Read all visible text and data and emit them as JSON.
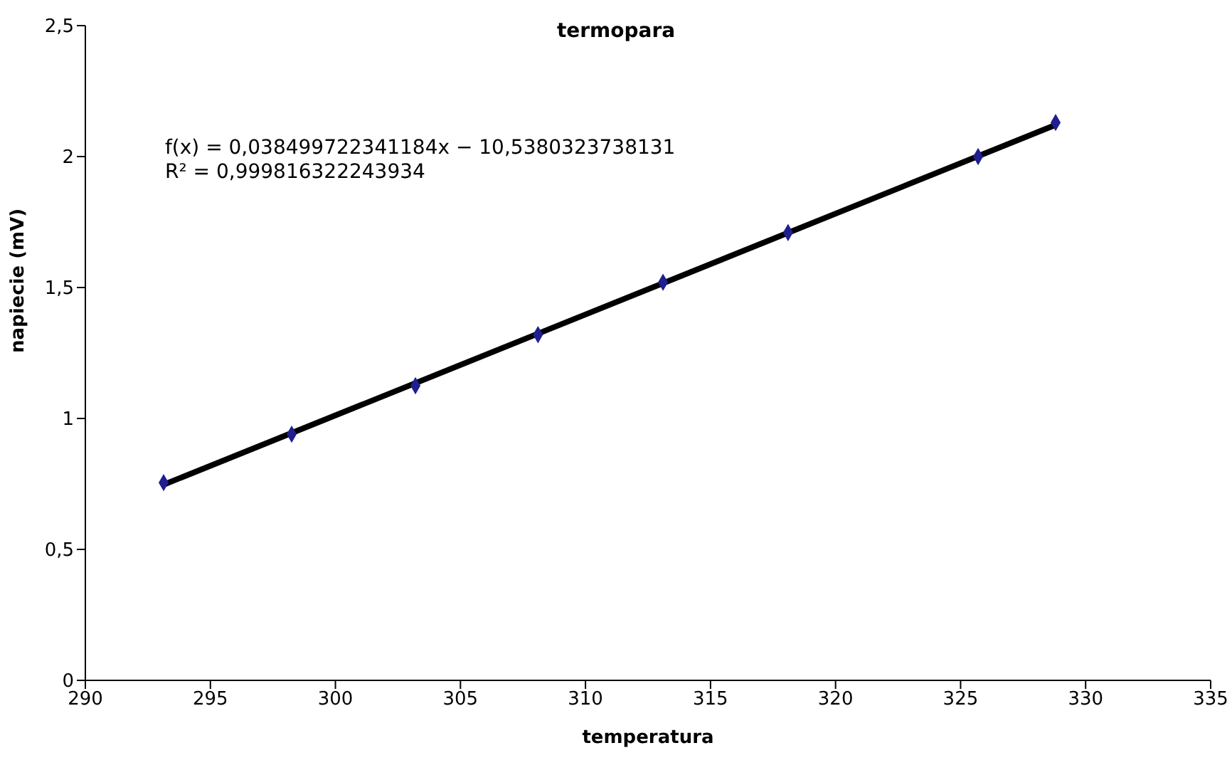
{
  "chart_data": {
    "type": "scatter",
    "title": "termopara",
    "xlabel": "temperatura",
    "ylabel": "napiecie (mV)",
    "annotations": [
      "f(x) = 0,038499722341184x − 10,5380323738131",
      "R² = 0,999816322243934"
    ],
    "xlim": [
      290,
      335
    ],
    "xticks": [
      290,
      295,
      300,
      305,
      310,
      315,
      320,
      325,
      330,
      335
    ],
    "ylim": [
      0,
      2.5
    ],
    "yticks": [
      0,
      {
        "value": 0.5,
        "label": "0,5"
      },
      1,
      {
        "value": 1.5,
        "label": "1,5"
      },
      2,
      {
        "value": 2.5,
        "label": "2,5"
      }
    ],
    "grid": false,
    "legend": false,
    "series": [
      {
        "type": "line",
        "color": "#000000",
        "x": [
          293.15,
          328.8
        ],
        "values": [
          0.748,
          2.121
        ],
        "marker": "none",
        "line_style": "solid"
      },
      {
        "color": "#1f1f8f",
        "x": [
          293.13,
          298.25,
          303.2,
          308.1,
          313.1,
          318.1,
          325.7,
          328.8
        ],
        "values": [
          0.755,
          0.94,
          1.125,
          1.32,
          1.52,
          1.71,
          2.0,
          2.13
        ],
        "marker": "diamond"
      }
    ]
  }
}
